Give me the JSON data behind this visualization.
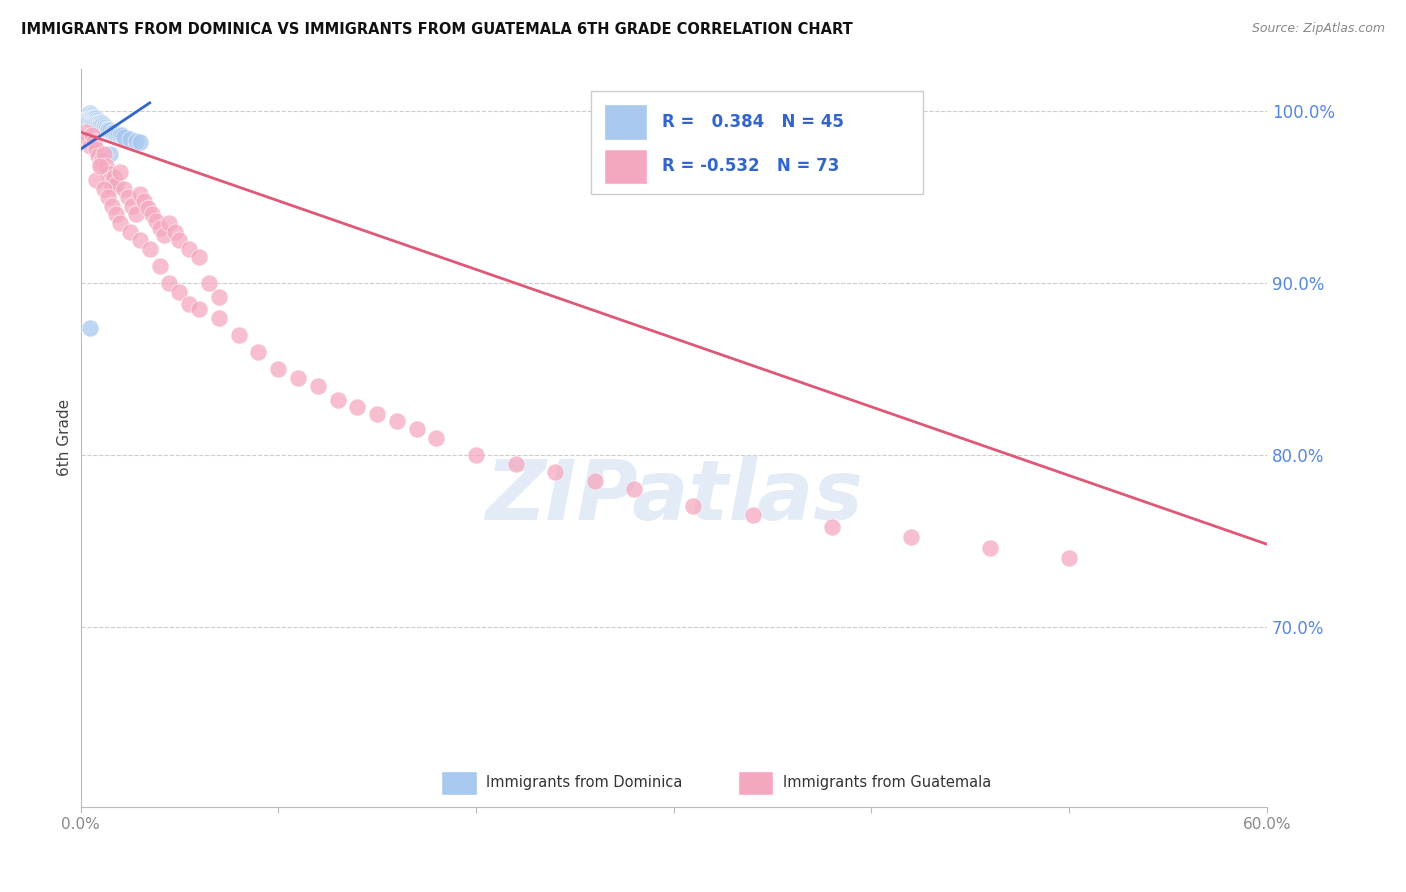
{
  "title": "IMMIGRANTS FROM DOMINICA VS IMMIGRANTS FROM GUATEMALA 6TH GRADE CORRELATION CHART",
  "source": "Source: ZipAtlas.com",
  "ylabel": "6th Grade",
  "xmin": 0.0,
  "xmax": 0.6,
  "ymin": 0.595,
  "ymax": 1.025,
  "blue_R": 0.384,
  "blue_N": 45,
  "pink_R": -0.532,
  "pink_N": 73,
  "blue_color": "#A8C8F0",
  "pink_color": "#F4A8C0",
  "blue_line_color": "#3366CC",
  "pink_line_color": "#E05878",
  "grid_color": "#CCCCCC",
  "title_color": "#111111",
  "source_color": "#888888",
  "axis_label_color": "#444444",
  "right_axis_color": "#5588DD",
  "tick_color": "#888888",
  "legend_text_blue": "#3366CC",
  "legend_border": "#CCCCCC",
  "ylabel_right_positions": [
    1.0,
    0.9,
    0.8,
    0.7
  ],
  "ylabel_right_labels": [
    "100.0%",
    "90.0%",
    "80.0%",
    "70.0%"
  ],
  "blue_scatter_x": [
    0.003,
    0.004,
    0.004,
    0.005,
    0.005,
    0.005,
    0.005,
    0.006,
    0.006,
    0.006,
    0.006,
    0.007,
    0.007,
    0.007,
    0.007,
    0.008,
    0.008,
    0.008,
    0.009,
    0.009,
    0.009,
    0.01,
    0.01,
    0.01,
    0.011,
    0.011,
    0.012,
    0.012,
    0.013,
    0.013,
    0.014,
    0.014,
    0.015,
    0.016,
    0.017,
    0.018,
    0.019,
    0.02,
    0.021,
    0.022,
    0.025,
    0.028,
    0.03,
    0.005,
    0.015
  ],
  "blue_scatter_y": [
    0.998,
    0.997,
    0.996,
    0.999,
    0.998,
    0.997,
    0.996,
    0.998,
    0.997,
    0.996,
    0.995,
    0.997,
    0.996,
    0.995,
    0.994,
    0.996,
    0.995,
    0.994,
    0.995,
    0.994,
    0.993,
    0.994,
    0.993,
    0.992,
    0.993,
    0.992,
    0.992,
    0.991,
    0.991,
    0.99,
    0.99,
    0.989,
    0.989,
    0.988,
    0.988,
    0.987,
    0.987,
    0.986,
    0.986,
    0.985,
    0.984,
    0.983,
    0.982,
    0.874,
    0.975
  ],
  "pink_scatter_x": [
    0.003,
    0.004,
    0.005,
    0.006,
    0.007,
    0.008,
    0.009,
    0.01,
    0.011,
    0.012,
    0.013,
    0.014,
    0.015,
    0.016,
    0.017,
    0.018,
    0.02,
    0.022,
    0.024,
    0.026,
    0.028,
    0.03,
    0.032,
    0.034,
    0.036,
    0.038,
    0.04,
    0.042,
    0.045,
    0.048,
    0.05,
    0.055,
    0.06,
    0.065,
    0.07,
    0.008,
    0.01,
    0.012,
    0.014,
    0.016,
    0.018,
    0.02,
    0.025,
    0.03,
    0.035,
    0.04,
    0.045,
    0.05,
    0.055,
    0.06,
    0.07,
    0.08,
    0.09,
    0.1,
    0.11,
    0.12,
    0.13,
    0.14,
    0.15,
    0.16,
    0.17,
    0.18,
    0.2,
    0.22,
    0.24,
    0.26,
    0.28,
    0.31,
    0.34,
    0.38,
    0.42,
    0.46,
    0.5
  ],
  "pink_scatter_y": [
    0.988,
    0.984,
    0.98,
    0.986,
    0.982,
    0.978,
    0.974,
    0.97,
    0.972,
    0.975,
    0.968,
    0.964,
    0.96,
    0.956,
    0.962,
    0.958,
    0.965,
    0.955,
    0.95,
    0.945,
    0.94,
    0.952,
    0.948,
    0.944,
    0.94,
    0.936,
    0.932,
    0.928,
    0.935,
    0.93,
    0.925,
    0.92,
    0.915,
    0.9,
    0.892,
    0.96,
    0.968,
    0.955,
    0.95,
    0.945,
    0.94,
    0.935,
    0.93,
    0.925,
    0.92,
    0.91,
    0.9,
    0.895,
    0.888,
    0.885,
    0.88,
    0.87,
    0.86,
    0.85,
    0.845,
    0.84,
    0.832,
    0.828,
    0.824,
    0.82,
    0.815,
    0.81,
    0.8,
    0.795,
    0.79,
    0.785,
    0.78,
    0.77,
    0.765,
    0.758,
    0.752,
    0.746,
    0.74
  ],
  "blue_trend_x": [
    0.0,
    0.035
  ],
  "blue_trend_y": [
    0.978,
    1.005
  ],
  "pink_trend_x": [
    0.0,
    0.6
  ],
  "pink_trend_y": [
    0.988,
    0.748
  ]
}
